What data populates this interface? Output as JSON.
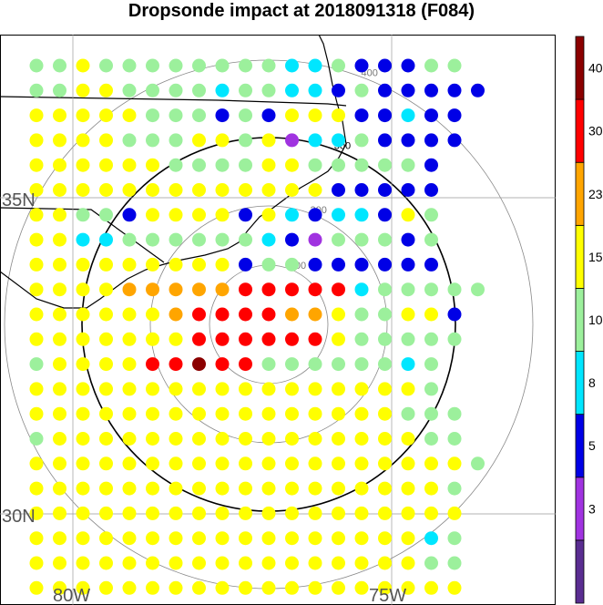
{
  "title": "Dropsonde impact at 2018091318 (F084)",
  "map": {
    "lat_labels": [
      {
        "text": "35N",
        "lat": 35
      },
      {
        "text": "30N",
        "lat": 30
      }
    ],
    "lon_labels": [
      {
        "text": "80W",
        "lon": -80
      },
      {
        "text": "75W",
        "lon": -75
      }
    ],
    "range_rings": [
      {
        "label": "100"
      },
      {
        "label": "200"
      },
      {
        "label": "300"
      },
      {
        "label": "400"
      }
    ],
    "highlighted_ring_label": "300"
  },
  "colorbar": {
    "tick_labels": [
      "3",
      "5",
      "8",
      "10",
      "15",
      "23",
      "30",
      "40"
    ],
    "colors": [
      "#5a2d91",
      "#a033e0",
      "#0000e6",
      "#00e6ff",
      "#9cf09c",
      "#ffff00",
      "#ffa500",
      "#ff0000",
      "#8b0000"
    ]
  },
  "chart_data": {
    "type": "scatter",
    "title": "Dropsonde impact at 2018091318 (F084)",
    "grid_rows": [
      "ggyggggggggttgeeegg",
      "ggyyggggtggttbgeeeee",
      "yyyyygggegeyyyeetee",
      "yyyygggyygyvttgbeee",
      "yyyyyyggggyyggggge",
      "yyyyyyyyyyyyyeeeee",
      "yyggeyyyyeytetteyg",
      "yyttggggggtbvgggeg",
      "yyyyyyyyybggbeeeee",
      "yyyyooooorrrrrtggggg",
      "yyyyyyorrrrooyggyye",
      "yyyyyyyrrrrrryggggg",
      "gyyyyrrNrrggggggtg",
      "yyyyyyyyyyyyyyyyyg",
      "yyyyyyyyyyyyyyyyggg",
      "gyyyyyyyyyyyyyyyygg",
      "yyyyyyyyyyyyyyyyyyyg",
      "yyyyyyyyyyyyyyyyyyg",
      "yyyyyyyyyyyyyyyyyyy",
      "yyyyyyyyyyyyyyyyytg",
      "yyyyyyyyyyyyyyyyygg",
      "yyyyyyyyyyyyyyyyyyy"
    ],
    "color_key": {
      "v": "violet",
      "b": "blue",
      "t": "cyan",
      "g": "lightgreen",
      "y": "yellow",
      "o": "orange",
      "r": "red",
      "N": "darkred",
      "e": "blue"
    },
    "bins": [
      "3",
      "5",
      "8",
      "10",
      "15",
      "23",
      "30",
      "40"
    ]
  }
}
